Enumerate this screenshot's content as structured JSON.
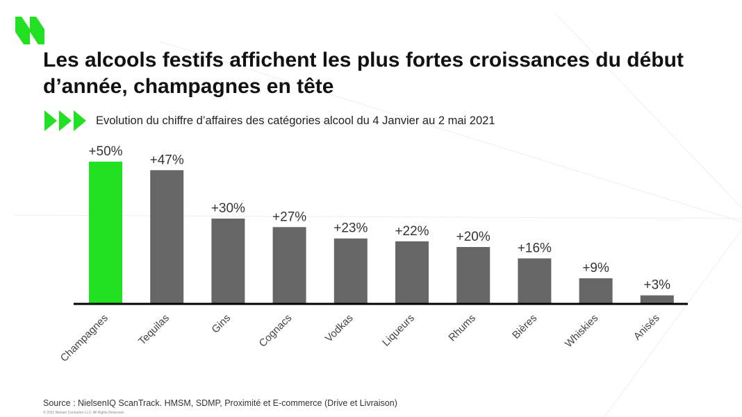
{
  "header": {
    "title": "Les alcools festifs affichent les plus fortes croissances du début d’année, champagnes en tête",
    "subtitle": "Evolution du chiffre d’affaires des catégories alcool du 4 Janvier au 2 mai 2021"
  },
  "footer": {
    "source": "Source : NielsenIQ ScanTrack. HMSM, SDMP, Proximité et E-commerce (Drive et Livraison)",
    "copyright": "© 2021 Nielsen Consumer LLC. All Rights Reserved."
  },
  "colors": {
    "accent": "#22e022",
    "bar": "#666666",
    "axis": "#000000",
    "logo": "#22e022"
  },
  "icons": {
    "logo": "nielseniq-logo-icon",
    "bullet": "triple-chevron-right-icon"
  },
  "chart_data": {
    "type": "bar",
    "categories": [
      "Champagnes",
      "Tequilas",
      "Gins",
      "Cognacs",
      "Vodkas",
      "Liqueurs",
      "Rhums",
      "Bières",
      "Whiskies",
      "Anisés"
    ],
    "values": [
      50,
      47,
      30,
      27,
      23,
      22,
      20,
      16,
      9,
      3
    ],
    "data_labels": [
      "+50%",
      "+47%",
      "+30%",
      "+27%",
      "+23%",
      "+22%",
      "+20%",
      "+16%",
      "+9%",
      "+3%"
    ],
    "highlight_index": 0,
    "ylim": [
      0,
      50
    ],
    "unit": "%",
    "grid": false,
    "legend": "none"
  }
}
